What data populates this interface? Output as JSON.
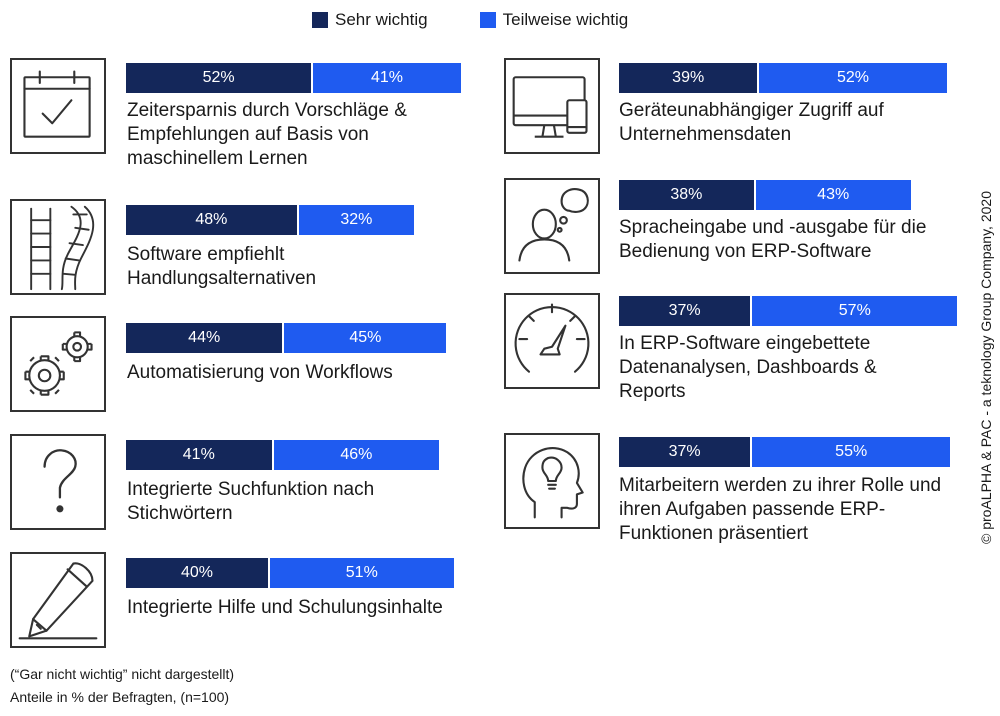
{
  "colors": {
    "sehr": "#14275a",
    "teilweise": "#1f5bf0"
  },
  "legend": {
    "sehr": "Sehr wichtig",
    "teilweise": "Teilweise wichtig"
  },
  "chart_data": {
    "type": "bar",
    "stacked": true,
    "orientation": "horizontal",
    "unit": "%",
    "series": [
      {
        "name": "Sehr wichtig",
        "values": [
          52,
          48,
          44,
          41,
          40,
          39,
          38,
          37,
          37
        ]
      },
      {
        "name": "Teilweise wichtig",
        "values": [
          41,
          32,
          45,
          46,
          51,
          52,
          43,
          57,
          55
        ]
      }
    ],
    "items": [
      {
        "label": "Zeitersparnis durch Vorschläge & Empfehlungen auf Basis von maschinellem Lernen",
        "icon": "calendar-check-icon",
        "sehr": "52%",
        "teilweise": "41%"
      },
      {
        "label": "Software empfiehlt Handlungsalternativen",
        "icon": "ladder-path-icon",
        "sehr": "48%",
        "teilweise": "32%"
      },
      {
        "label": "Automatisierung von Workflows",
        "icon": "gears-icon",
        "sehr": "44%",
        "teilweise": "45%"
      },
      {
        "label": "Integrierte Suchfunktion nach Stichwörtern",
        "icon": "question-mark-icon",
        "sehr": "41%",
        "teilweise": "46%"
      },
      {
        "label": "Integrierte Hilfe und Schulungsinhalte",
        "icon": "pencil-icon",
        "sehr": "40%",
        "teilweise": "51%"
      },
      {
        "label": "Geräteunabhängiger Zugriff auf Unternehmensdaten",
        "icon": "monitor-phone-icon",
        "sehr": "39%",
        "teilweise": "52%"
      },
      {
        "label": "Spracheingabe und -ausgabe für die Bedienung von ERP-Software",
        "icon": "person-speech-icon",
        "sehr": "38%",
        "teilweise": "43%"
      },
      {
        "label": "In ERP-Software eingebettete Datenanalysen, Dashboards & Reports",
        "icon": "gauge-icon",
        "sehr": "37%",
        "teilweise": "57%"
      },
      {
        "label": "Mitarbeitern werden zu ihrer Rolle und ihren Aufgaben passende ERP-Funktionen präsentiert",
        "icon": "head-bulb-icon",
        "sehr": "37%",
        "teilweise": "55%"
      }
    ]
  },
  "footnote": {
    "line1": "(“Gar nicht wichtig” nicht dargestellt)",
    "line2": "Anteile in % der Befragten, (n=100)"
  },
  "copyright": "© proALPHA & PAC - a teknology Group Company, 2020"
}
